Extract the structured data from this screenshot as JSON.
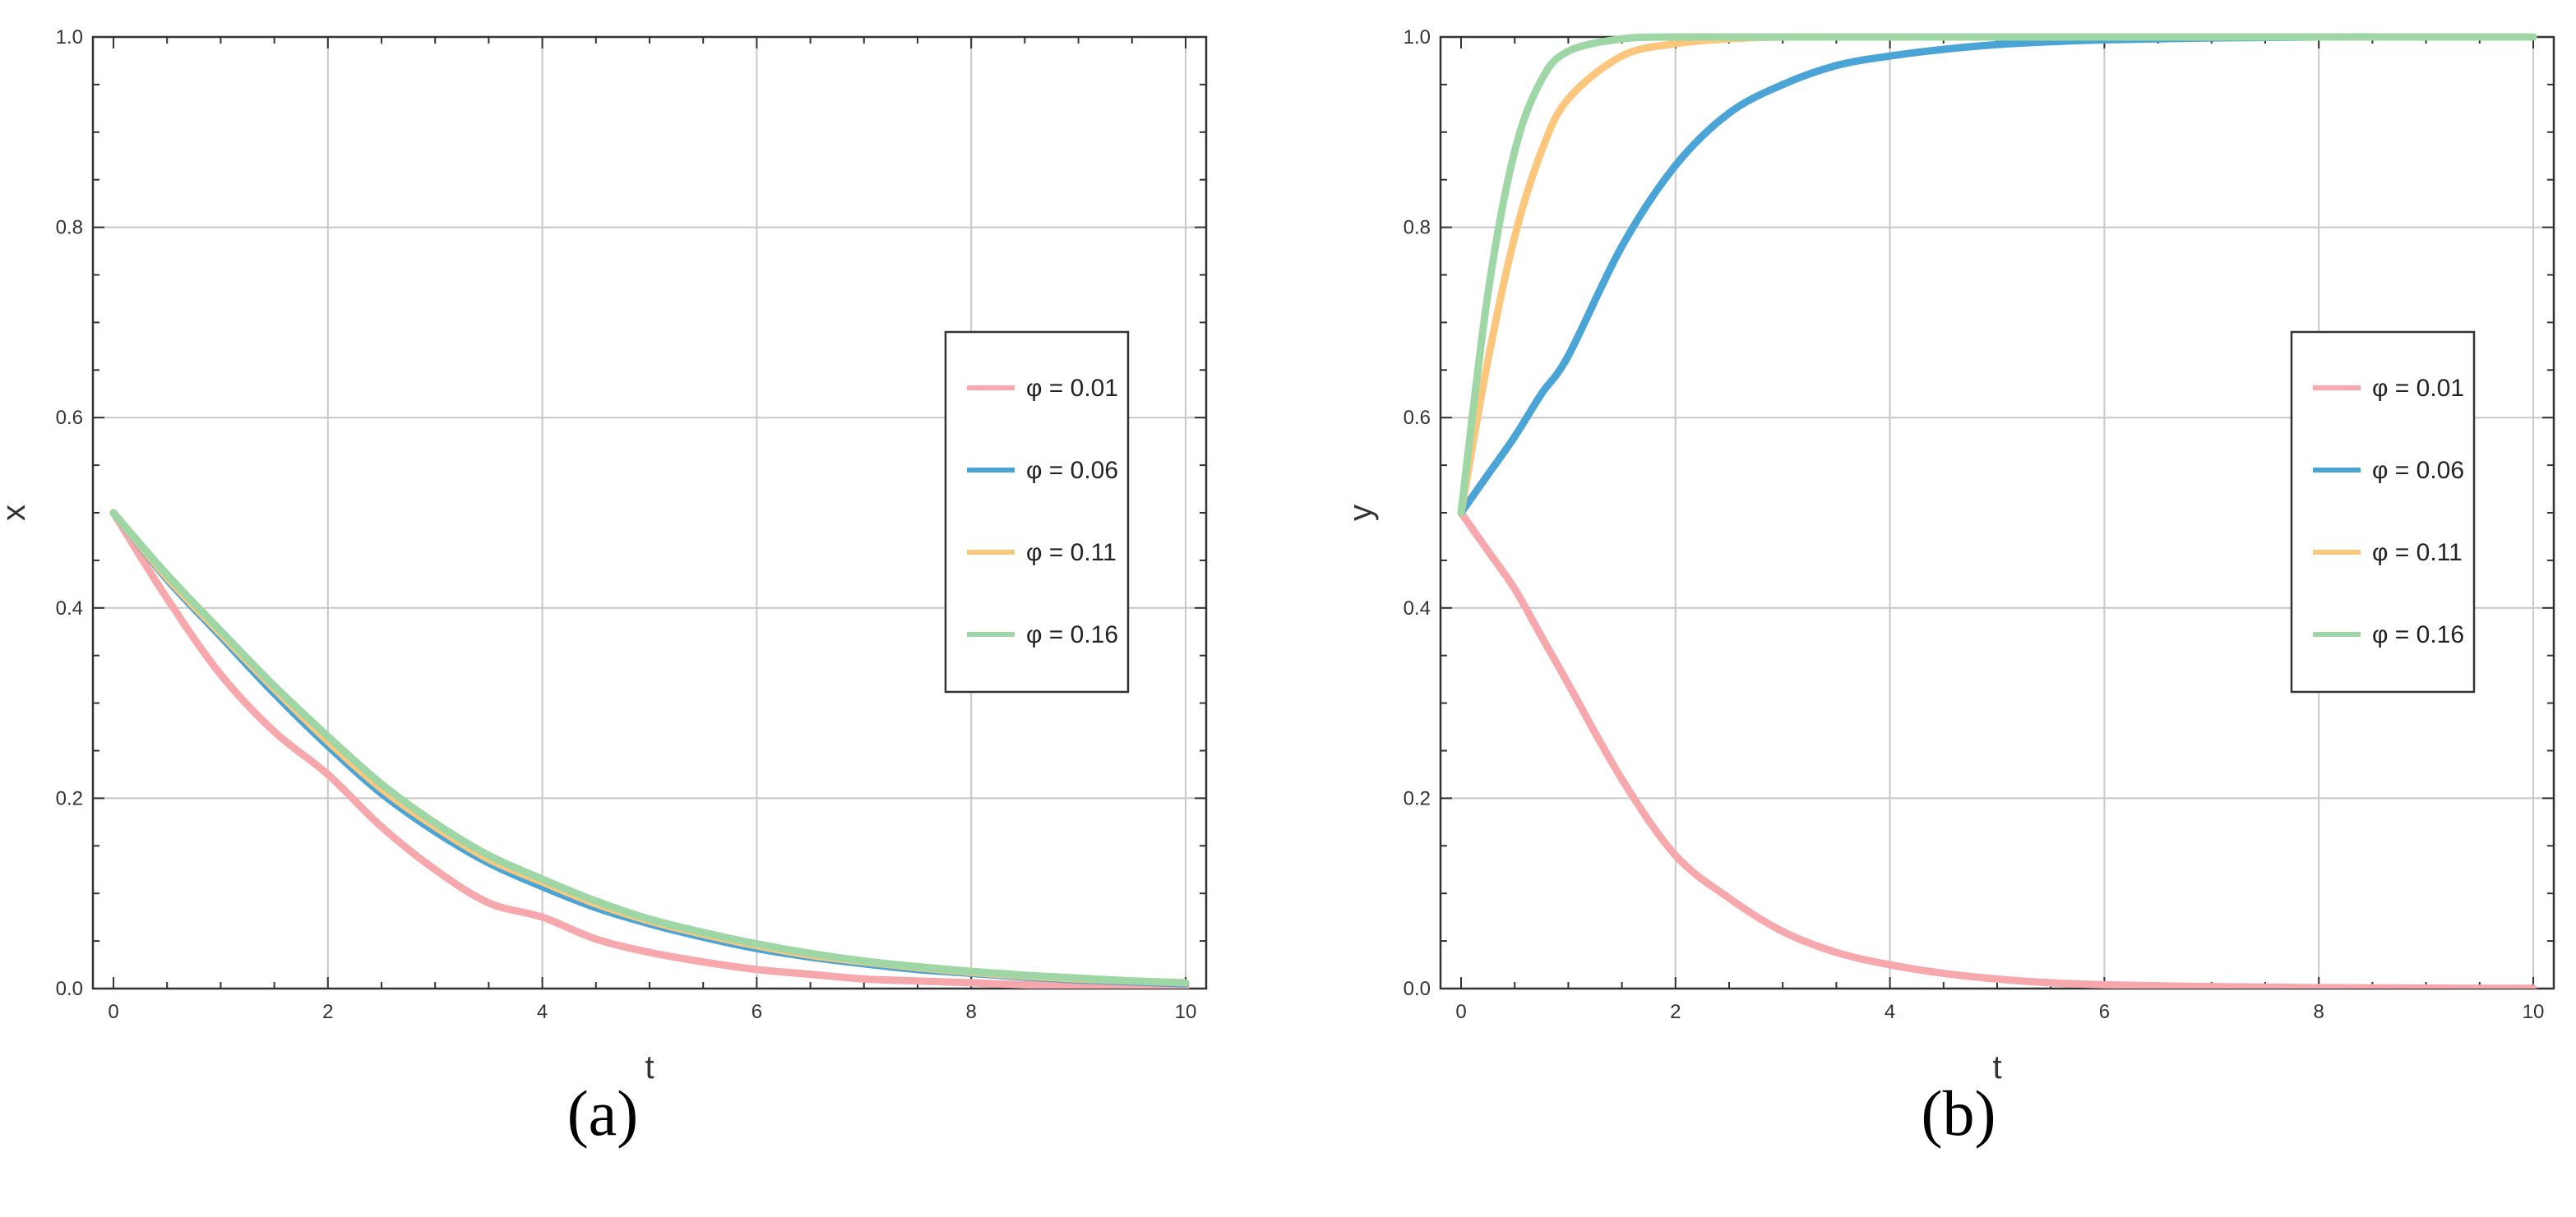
{
  "chart_data": [
    {
      "type": "line",
      "panel_label": "(a)",
      "xlabel": "t",
      "ylabel": "x",
      "xlim": [
        0,
        10
      ],
      "ylim": [
        0,
        1
      ],
      "xticks": [
        0,
        2,
        4,
        6,
        8,
        10
      ],
      "yticks": [
        0.0,
        0.2,
        0.4,
        0.6,
        0.8,
        1.0
      ],
      "xtick_labels": [
        "0",
        "2",
        "4",
        "6",
        "8",
        "10"
      ],
      "ytick_labels": [
        "0.0",
        "0.2",
        "0.4",
        "0.6",
        "0.8",
        "1.0"
      ],
      "grid": true,
      "legend_position": "right",
      "x": [
        0,
        0.5,
        1,
        1.5,
        2,
        2.5,
        3,
        3.5,
        4,
        4.5,
        5,
        5.5,
        6,
        6.5,
        7,
        7.5,
        8,
        8.5,
        9,
        9.5,
        10
      ],
      "series": [
        {
          "name": "φ = 0.01",
          "color": "#f7a8ac",
          "values": [
            0.5,
            0.41,
            0.33,
            0.27,
            0.225,
            0.17,
            0.125,
            0.09,
            0.075,
            0.052,
            0.038,
            0.028,
            0.02,
            0.015,
            0.01,
            0.008,
            0.006,
            0.004,
            0.003,
            0.002,
            0.001
          ]
        },
        {
          "name": "φ = 0.06",
          "color": "#4ba4d6",
          "values": [
            0.5,
            0.43,
            0.37,
            0.31,
            0.255,
            0.205,
            0.165,
            0.132,
            0.107,
            0.085,
            0.068,
            0.054,
            0.042,
            0.033,
            0.026,
            0.02,
            0.016,
            0.012,
            0.009,
            0.007,
            0.005
          ]
        },
        {
          "name": "φ = 0.11",
          "color": "#fcc77d",
          "values": [
            0.5,
            0.432,
            0.373,
            0.315,
            0.26,
            0.21,
            0.17,
            0.136,
            0.112,
            0.089,
            0.071,
            0.057,
            0.045,
            0.035,
            0.028,
            0.022,
            0.017,
            0.013,
            0.01,
            0.008,
            0.006
          ]
        },
        {
          "name": "φ = 0.16",
          "color": "#9fd6a5",
          "values": [
            0.5,
            0.435,
            0.376,
            0.318,
            0.265,
            0.215,
            0.174,
            0.14,
            0.115,
            0.092,
            0.073,
            0.059,
            0.047,
            0.037,
            0.029,
            0.023,
            0.018,
            0.014,
            0.011,
            0.008,
            0.006
          ]
        }
      ]
    },
    {
      "type": "line",
      "panel_label": "(b)",
      "xlabel": "t",
      "ylabel": "y",
      "xlim": [
        0,
        10
      ],
      "ylim": [
        0,
        1
      ],
      "xticks": [
        0,
        2,
        4,
        6,
        8,
        10
      ],
      "yticks": [
        0.0,
        0.2,
        0.4,
        0.6,
        0.8,
        1.0
      ],
      "xtick_labels": [
        "0",
        "2",
        "4",
        "6",
        "8",
        "10"
      ],
      "ytick_labels": [
        "0.0",
        "0.2",
        "0.4",
        "0.6",
        "0.8",
        "1.0"
      ],
      "grid": true,
      "legend_position": "right",
      "x": [
        0,
        0.25,
        0.5,
        0.75,
        1,
        1.5,
        2,
        2.5,
        3,
        3.5,
        4,
        4.5,
        5,
        5.5,
        6,
        7,
        8,
        9,
        10
      ],
      "series": [
        {
          "name": "φ = 0.01",
          "color": "#f7a8ac",
          "values": [
            0.5,
            0.46,
            0.42,
            0.37,
            0.32,
            0.22,
            0.14,
            0.095,
            0.06,
            0.038,
            0.025,
            0.016,
            0.01,
            0.006,
            0.004,
            0.002,
            0.001,
            0.0005,
            0.0002
          ]
        },
        {
          "name": "φ = 0.06",
          "color": "#4ba4d6",
          "values": [
            0.5,
            0.54,
            0.58,
            0.625,
            0.665,
            0.78,
            0.865,
            0.92,
            0.95,
            0.97,
            0.98,
            0.987,
            0.992,
            0.995,
            0.997,
            0.999,
            1.0,
            1.0,
            1.0
          ]
        },
        {
          "name": "φ = 0.11",
          "color": "#fcc77d",
          "values": [
            0.5,
            0.66,
            0.79,
            0.88,
            0.935,
            0.98,
            0.993,
            0.998,
            1.0,
            1.0,
            1.0,
            1.0,
            1.0,
            1.0,
            1.0,
            1.0,
            1.0,
            1.0,
            1.0
          ]
        },
        {
          "name": "φ = 0.16",
          "color": "#9fd6a5",
          "values": [
            0.5,
            0.73,
            0.88,
            0.955,
            0.985,
            0.998,
            1.0,
            1.0,
            1.0,
            1.0,
            1.0,
            1.0,
            1.0,
            1.0,
            1.0,
            1.0,
            1.0,
            1.0,
            1.0
          ]
        }
      ]
    }
  ]
}
